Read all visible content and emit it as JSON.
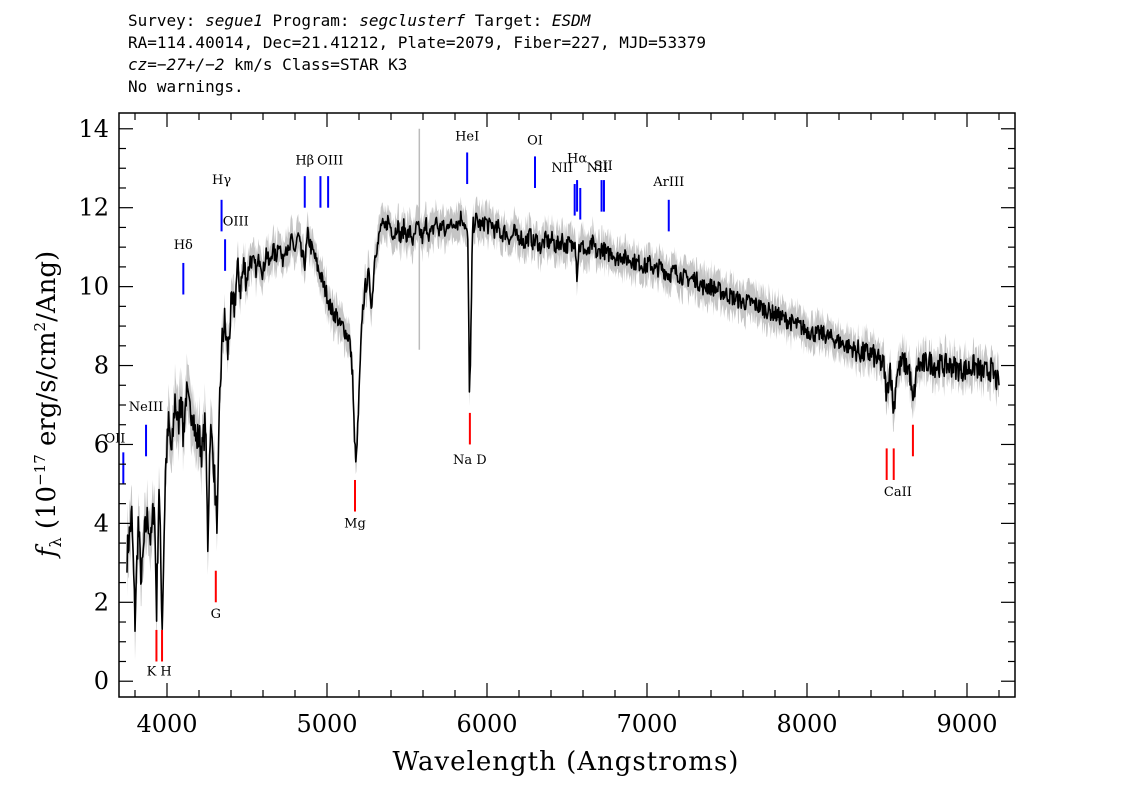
{
  "header": {
    "line1": {
      "survey_label": "Survey: ",
      "survey": "segue1",
      "program_label": " Program: ",
      "program": "segclusterf",
      "target_label": " Target: ",
      "target": "ESDM"
    },
    "line2": "RA=114.40014, Dec=21.41212, Plate=2079, Fiber=227, MJD=53379",
    "line3": {
      "cz_label": "cz=",
      "cz": "−27+/−2",
      "rest": " km/s Class=STAR K3"
    },
    "line4": "No warnings."
  },
  "chart_data": {
    "type": "line",
    "xlabel": "Wavelength (Angstroms)",
    "ylabel": "f_λ (10^-17 erg/s/cm^2/Ang)",
    "ylabel_parts": {
      "f": "f",
      "sub": "λ",
      "a": " (10",
      "sup1": "−17",
      "b": " erg/s/cm",
      "sup2": "2",
      "c": "/Ang)"
    },
    "xlim": [
      3700,
      9300
    ],
    "ylim": [
      -0.4,
      14.4
    ],
    "x_ticks": [
      4000,
      5000,
      6000,
      7000,
      8000,
      9000
    ],
    "y_ticks": [
      0,
      2,
      4,
      6,
      8,
      10,
      12,
      14
    ],
    "grid": false,
    "series": [
      {
        "color": "#000000",
        "noise_color": "#bbbbbb",
        "points": [
          [
            3750,
            3.2
          ],
          [
            3780,
            4.2
          ],
          [
            3800,
            1.5
          ],
          [
            3820,
            4.0
          ],
          [
            3840,
            2.5
          ],
          [
            3860,
            3.7
          ],
          [
            3880,
            4.2
          ],
          [
            3900,
            3.5
          ],
          [
            3920,
            4.6
          ],
          [
            3935,
            1.8
          ],
          [
            3950,
            5.0
          ],
          [
            3970,
            1.4
          ],
          [
            3990,
            5.3
          ],
          [
            4010,
            6.5
          ],
          [
            4030,
            5.7
          ],
          [
            4050,
            7.2
          ],
          [
            4070,
            6.4
          ],
          [
            4090,
            7.5
          ],
          [
            4100,
            6.2
          ],
          [
            4120,
            7.3
          ],
          [
            4140,
            6.8
          ],
          [
            4160,
            7.0
          ],
          [
            4180,
            6.1
          ],
          [
            4200,
            6.2
          ],
          [
            4220,
            5.8
          ],
          [
            4240,
            6.6
          ],
          [
            4255,
            3.5
          ],
          [
            4270,
            6.4
          ],
          [
            4290,
            5.7
          ],
          [
            4305,
            4.5
          ],
          [
            4315,
            4.0
          ],
          [
            4330,
            7.2
          ],
          [
            4345,
            8.6
          ],
          [
            4360,
            9.1
          ],
          [
            4380,
            8.3
          ],
          [
            4400,
            9.4
          ],
          [
            4420,
            9.5
          ],
          [
            4440,
            10.4
          ],
          [
            4460,
            10.0
          ],
          [
            4480,
            10.5
          ],
          [
            4500,
            10.2
          ],
          [
            4520,
            10.7
          ],
          [
            4540,
            10.6
          ],
          [
            4560,
            10.4
          ],
          [
            4580,
            10.8
          ],
          [
            4600,
            10.3
          ],
          [
            4620,
            10.9
          ],
          [
            4640,
            10.5
          ],
          [
            4660,
            11.0
          ],
          [
            4680,
            10.7
          ],
          [
            4700,
            11.2
          ],
          [
            4720,
            10.6
          ],
          [
            4740,
            11.1
          ],
          [
            4760,
            10.8
          ],
          [
            4780,
            11.2
          ],
          [
            4800,
            10.9
          ],
          [
            4820,
            11.3
          ],
          [
            4840,
            10.8
          ],
          [
            4861,
            10.6
          ],
          [
            4880,
            11.3
          ],
          [
            4900,
            11.0
          ],
          [
            4920,
            10.8
          ],
          [
            4940,
            10.5
          ],
          [
            4960,
            10.3
          ],
          [
            4980,
            10.0
          ],
          [
            5000,
            9.8
          ],
          [
            5020,
            9.5
          ],
          [
            5040,
            9.3
          ],
          [
            5060,
            9.3
          ],
          [
            5080,
            9.0
          ],
          [
            5100,
            9.0
          ],
          [
            5120,
            8.8
          ],
          [
            5140,
            8.7
          ],
          [
            5160,
            7.8
          ],
          [
            5172,
            6.0
          ],
          [
            5184,
            5.6
          ],
          [
            5200,
            7.2
          ],
          [
            5220,
            9.3
          ],
          [
            5240,
            10.0
          ],
          [
            5260,
            10.3
          ],
          [
            5280,
            9.5
          ],
          [
            5300,
            10.9
          ],
          [
            5320,
            11.1
          ],
          [
            5340,
            11.6
          ],
          [
            5360,
            11.4
          ],
          [
            5380,
            11.7
          ],
          [
            5400,
            11.5
          ],
          [
            5420,
            11.3
          ],
          [
            5440,
            11.6
          ],
          [
            5460,
            11.2
          ],
          [
            5480,
            11.5
          ],
          [
            5500,
            11.3
          ],
          [
            5520,
            11.4
          ],
          [
            5540,
            11.1
          ],
          [
            5560,
            11.5
          ],
          [
            5580,
            11.4
          ],
          [
            5600,
            11.2
          ],
          [
            5620,
            11.6
          ],
          [
            5640,
            11.3
          ],
          [
            5660,
            11.4
          ],
          [
            5680,
            11.7
          ],
          [
            5700,
            11.4
          ],
          [
            5720,
            11.6
          ],
          [
            5740,
            11.3
          ],
          [
            5760,
            11.7
          ],
          [
            5780,
            11.5
          ],
          [
            5800,
            11.7
          ],
          [
            5820,
            11.6
          ],
          [
            5840,
            11.8
          ],
          [
            5860,
            11.6
          ],
          [
            5880,
            11.2
          ],
          [
            5890,
            7.5
          ],
          [
            5896,
            7.9
          ],
          [
            5910,
            11.5
          ],
          [
            5930,
            11.7
          ],
          [
            5950,
            11.6
          ],
          [
            5970,
            11.5
          ],
          [
            5990,
            11.7
          ],
          [
            6010,
            11.5
          ],
          [
            6030,
            11.6
          ],
          [
            6050,
            11.4
          ],
          [
            6070,
            11.5
          ],
          [
            6090,
            11.3
          ],
          [
            6110,
            11.4
          ],
          [
            6130,
            11.3
          ],
          [
            6150,
            11.2
          ],
          [
            6170,
            11.4
          ],
          [
            6190,
            11.2
          ],
          [
            6210,
            11.3
          ],
          [
            6230,
            11.1
          ],
          [
            6250,
            11.2
          ],
          [
            6270,
            11.3
          ],
          [
            6290,
            11.1
          ],
          [
            6310,
            11.2
          ],
          [
            6330,
            11.0
          ],
          [
            6350,
            11.1
          ],
          [
            6370,
            11.2
          ],
          [
            6390,
            11.1
          ],
          [
            6410,
            11.2
          ],
          [
            6430,
            11.0
          ],
          [
            6450,
            11.1
          ],
          [
            6470,
            11.2
          ],
          [
            6490,
            11.0
          ],
          [
            6510,
            11.1
          ],
          [
            6530,
            11.0
          ],
          [
            6550,
            11.3
          ],
          [
            6562,
            10.3
          ],
          [
            6575,
            11.0
          ],
          [
            6600,
            11.0
          ],
          [
            6630,
            10.8
          ],
          [
            6660,
            11.1
          ],
          [
            6690,
            10.8
          ],
          [
            6720,
            11.0
          ],
          [
            6750,
            10.8
          ],
          [
            6780,
            10.9
          ],
          [
            6810,
            10.7
          ],
          [
            6840,
            10.8
          ],
          [
            6870,
            10.7
          ],
          [
            6900,
            10.7
          ],
          [
            6930,
            10.6
          ],
          [
            6960,
            10.6
          ],
          [
            6990,
            10.5
          ],
          [
            7020,
            10.6
          ],
          [
            7050,
            10.4
          ],
          [
            7080,
            10.5
          ],
          [
            7110,
            10.4
          ],
          [
            7140,
            10.3
          ],
          [
            7170,
            10.4
          ],
          [
            7200,
            10.3
          ],
          [
            7250,
            10.2
          ],
          [
            7300,
            10.2
          ],
          [
            7350,
            10.0
          ],
          [
            7400,
            10.0
          ],
          [
            7450,
            9.9
          ],
          [
            7500,
            9.8
          ],
          [
            7550,
            9.7
          ],
          [
            7600,
            9.6
          ],
          [
            7650,
            9.6
          ],
          [
            7700,
            9.5
          ],
          [
            7750,
            9.4
          ],
          [
            7800,
            9.3
          ],
          [
            7850,
            9.2
          ],
          [
            7900,
            9.1
          ],
          [
            7950,
            9.0
          ],
          [
            8000,
            8.9
          ],
          [
            8050,
            8.8
          ],
          [
            8100,
            8.8
          ],
          [
            8150,
            8.7
          ],
          [
            8200,
            8.6
          ],
          [
            8250,
            8.5
          ],
          [
            8300,
            8.4
          ],
          [
            8350,
            8.3
          ],
          [
            8400,
            8.3
          ],
          [
            8450,
            8.1
          ],
          [
            8480,
            8.0
          ],
          [
            8498,
            7.2
          ],
          [
            8520,
            8.0
          ],
          [
            8542,
            6.8
          ],
          [
            8560,
            7.8
          ],
          [
            8600,
            8.1
          ],
          [
            8640,
            7.9
          ],
          [
            8662,
            7.0
          ],
          [
            8690,
            8.0
          ],
          [
            8720,
            8.0
          ],
          [
            8760,
            8.1
          ],
          [
            8800,
            8.0
          ],
          [
            8850,
            8.0
          ],
          [
            8900,
            8.0
          ],
          [
            8950,
            7.9
          ],
          [
            9000,
            7.9
          ],
          [
            9050,
            8.0
          ],
          [
            9100,
            7.8
          ],
          [
            9150,
            7.9
          ],
          [
            9200,
            7.5
          ]
        ]
      }
    ],
    "emission_lines": [
      {
        "label": "Hδ",
        "x": 4102,
        "y1": 9.8,
        "y2": 10.6
      },
      {
        "label": "Hγ",
        "x": 4341,
        "y1": 11.4,
        "y2": 12.2
      },
      {
        "label": "OIII",
        "x": 4363,
        "y1": 10.4,
        "y2": 11.2
      },
      {
        "label": "NeIII",
        "x": 3869,
        "y1": 5.7,
        "y2": 6.5
      },
      {
        "label": "OII",
        "x": 3727,
        "y1": 5.0,
        "y2": 5.8
      },
      {
        "label": "Hβ",
        "x": 4861,
        "y1": 12.0,
        "y2": 12.8
      },
      {
        "label": "OIII",
        "x": 4959,
        "y1": 12.0,
        "y2": 12.8
      },
      {
        "label": "OIII",
        "x": 5007,
        "y1": 12.0,
        "y2": 12.8
      },
      {
        "label": "HeI",
        "x": 5876,
        "y1": 12.6,
        "y2": 13.4
      },
      {
        "label": "OI",
        "x": 6300,
        "y1": 12.5,
        "y2": 13.3
      },
      {
        "label": "NII",
        "x": 6548,
        "y1": 11.8,
        "y2": 12.6
      },
      {
        "label": "Hα",
        "x": 6563,
        "y1": 11.9,
        "y2": 12.7
      },
      {
        "label": "NII",
        "x": 6583,
        "y1": 11.7,
        "y2": 12.5
      },
      {
        "label": "SII",
        "x": 6716,
        "y1": 11.9,
        "y2": 12.7
      },
      {
        "label": "SII",
        "x": 6731,
        "y1": 11.9,
        "y2": 12.7
      },
      {
        "label": "ArIII",
        "x": 7136,
        "y1": 11.4,
        "y2": 12.2
      }
    ],
    "absorption_lines": [
      {
        "label": "K",
        "x": 3934,
        "y1": 0.5,
        "y2": 1.3
      },
      {
        "label": "H",
        "x": 3969,
        "y1": 0.5,
        "y2": 1.3
      },
      {
        "label": "G",
        "x": 4305,
        "y1": 2.0,
        "y2": 2.8
      },
      {
        "label": "Mg",
        "x": 5175,
        "y1": 4.3,
        "y2": 5.1
      },
      {
        "label": "Na D",
        "x": 5893,
        "y1": 6.0,
        "y2": 6.8
      },
      {
        "label": "CaII",
        "x": 8498,
        "y1": 5.1,
        "y2": 5.9
      },
      {
        "label": "CaII",
        "x": 8542,
        "y1": 5.1,
        "y2": 5.9
      },
      {
        "label": "CaII",
        "x": 8662,
        "y1": 5.7,
        "y2": 6.5
      }
    ],
    "line_label_text": {
      "hdelta": "Hδ",
      "hgamma": "Hγ",
      "oiii_a": "OIII",
      "neiii": "NeIII",
      "oii": "OII",
      "hbeta": "Hβ",
      "oiii_b": "OIII",
      "hei": "HeI",
      "oi": "OI",
      "nii": "NII",
      "halpha": "Hα",
      "sii": "SII",
      "arIII": "ArIII",
      "kh": "K H",
      "g": "G",
      "mg": "Mg",
      "nad": "Na D",
      "caii": "CaII"
    },
    "colors": {
      "emission": "#0000ff",
      "absorption": "#ff0000",
      "spectrum": "#000000",
      "noise": "#bbbbbb"
    }
  }
}
